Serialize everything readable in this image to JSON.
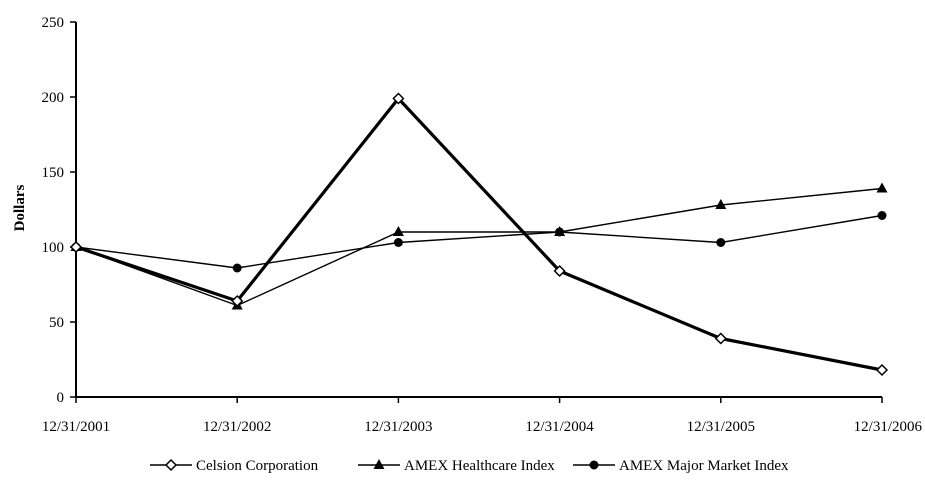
{
  "chart_data": {
    "type": "line",
    "title": "",
    "xlabel": "",
    "ylabel": "Dollars",
    "categories": [
      "12/31/2001",
      "12/31/2002",
      "12/31/2003",
      "12/31/2004",
      "12/31/2005",
      "12/31/2006"
    ],
    "yticks": [
      "0",
      "50",
      "100",
      "150",
      "200",
      "250"
    ],
    "ylim": [
      0,
      250
    ],
    "grid": false,
    "legend_position": "bottom",
    "series": [
      {
        "name": "Celsion Corporation",
        "marker": "diamond-open",
        "line": "thick",
        "values": [
          100,
          64,
          199,
          84,
          39,
          18
        ]
      },
      {
        "name": "AMEX Healthcare Index",
        "marker": "triangle-filled",
        "line": "thin",
        "values": [
          100,
          61,
          110,
          110,
          128,
          139
        ]
      },
      {
        "name": "AMEX Major Market Index",
        "marker": "circle-filled",
        "line": "thin",
        "values": [
          100,
          86,
          103,
          110,
          103,
          121
        ]
      }
    ]
  }
}
